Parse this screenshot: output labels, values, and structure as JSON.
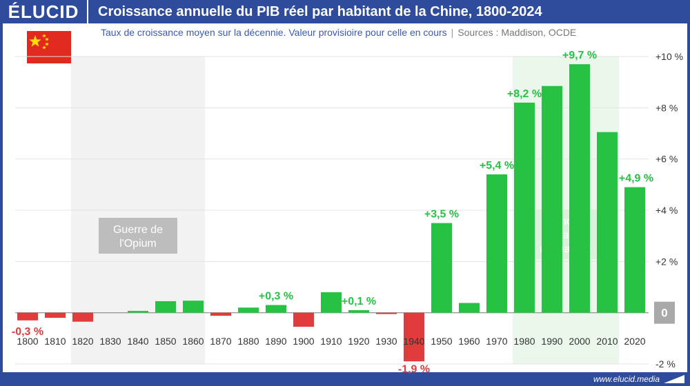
{
  "header": {
    "logo": "ÉLUCID",
    "title": "Croissance annuelle du PIB réel par habitant de la Chine, 1800-2024"
  },
  "subtitle": {
    "text": "Taux de croissance moyen sur la décennie. Valeur provisioire pour celle en cours",
    "separator": "|",
    "sources": "Sources : Maddison, OCDE"
  },
  "footer": {
    "url": "www.elucid.media"
  },
  "flag": {
    "icon": "china-flag-icon",
    "color": "#e02a1f",
    "star_color": "#ffde00"
  },
  "colors": {
    "positive": "#27c144",
    "negative": "#e03c3c",
    "shade_war": "#f2f2f2",
    "shade_economy": "#eaf7ea",
    "brand": "#2f4b9c"
  },
  "chart_data": {
    "type": "bar",
    "categories": [
      "1800",
      "1810",
      "1820",
      "1830",
      "1840",
      "1850",
      "1860",
      "1870",
      "1880",
      "1890",
      "1900",
      "1910",
      "1920",
      "1930",
      "1940",
      "1950",
      "1960",
      "1970",
      "1980",
      "1990",
      "2000",
      "2010",
      "2020"
    ],
    "values": [
      -0.3,
      -0.2,
      -0.35,
      0,
      0.07,
      0.45,
      0.47,
      -0.12,
      0.2,
      0.3,
      -0.55,
      0.8,
      0.1,
      -0.03,
      -1.9,
      3.5,
      0.38,
      5.4,
      8.2,
      8.85,
      9.7,
      7.05,
      4.9
    ],
    "data_labels": [
      {
        "category": "1800",
        "text": "-0,3 %"
      },
      {
        "category": "1890",
        "text": "+0,3 %"
      },
      {
        "category": "1920",
        "text": "+0,1 %"
      },
      {
        "category": "1940",
        "text": "-1,9 %"
      },
      {
        "category": "1950",
        "text": "+3,5 %"
      },
      {
        "category": "1970",
        "text": "+5,4 %"
      },
      {
        "category": "1980",
        "text": "+8,2 %"
      },
      {
        "category": "2000",
        "text": "+9,7 %"
      },
      {
        "category": "2020",
        "text": "+4,9 %"
      }
    ],
    "y_ticks": [
      {
        "value": 10,
        "label": "+10 %"
      },
      {
        "value": 8,
        "label": "+8 %"
      },
      {
        "value": 6,
        "label": "+6 %"
      },
      {
        "value": 4,
        "label": "+4 %"
      },
      {
        "value": 2,
        "label": "+2 %"
      },
      {
        "value": 0,
        "label": "0"
      },
      {
        "value": -2,
        "label": "-2 %"
      }
    ],
    "ylim": [
      -2,
      10
    ],
    "grid": true,
    "annotations": [
      {
        "text_lines": [
          "Guerre de",
          "l'Opium"
        ],
        "from": "1820",
        "to": "1860",
        "kind": "war"
      },
      {
        "text_lines": [
          "Économie",
          "socialiste",
          "de marché"
        ],
        "from": "1980",
        "to": "2010",
        "kind": "economy"
      }
    ]
  }
}
